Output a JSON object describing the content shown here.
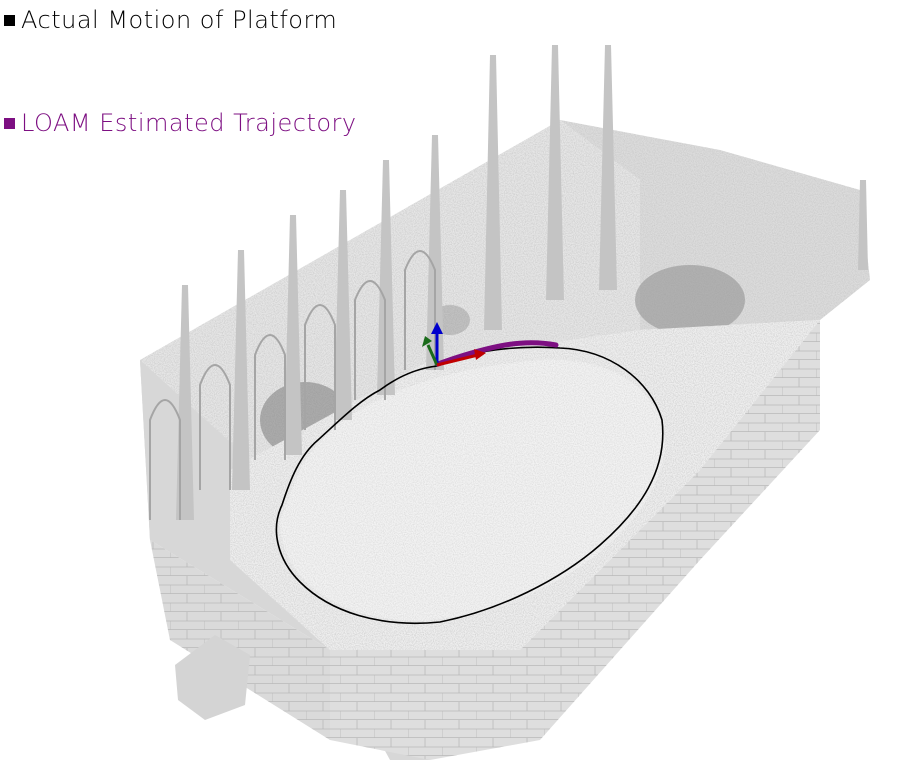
{
  "legend": {
    "actual": {
      "label": "Actual Motion of Platform",
      "color": "#000000"
    },
    "estimated": {
      "label": "LOAM Estimated Trajectory",
      "color": "#7d0f82"
    }
  },
  "scene": {
    "point_cloud_color": "#9a9a9a",
    "axis_colors": {
      "x": "#c00000",
      "y": "#1a6b1a",
      "z": "#0000cc"
    }
  }
}
